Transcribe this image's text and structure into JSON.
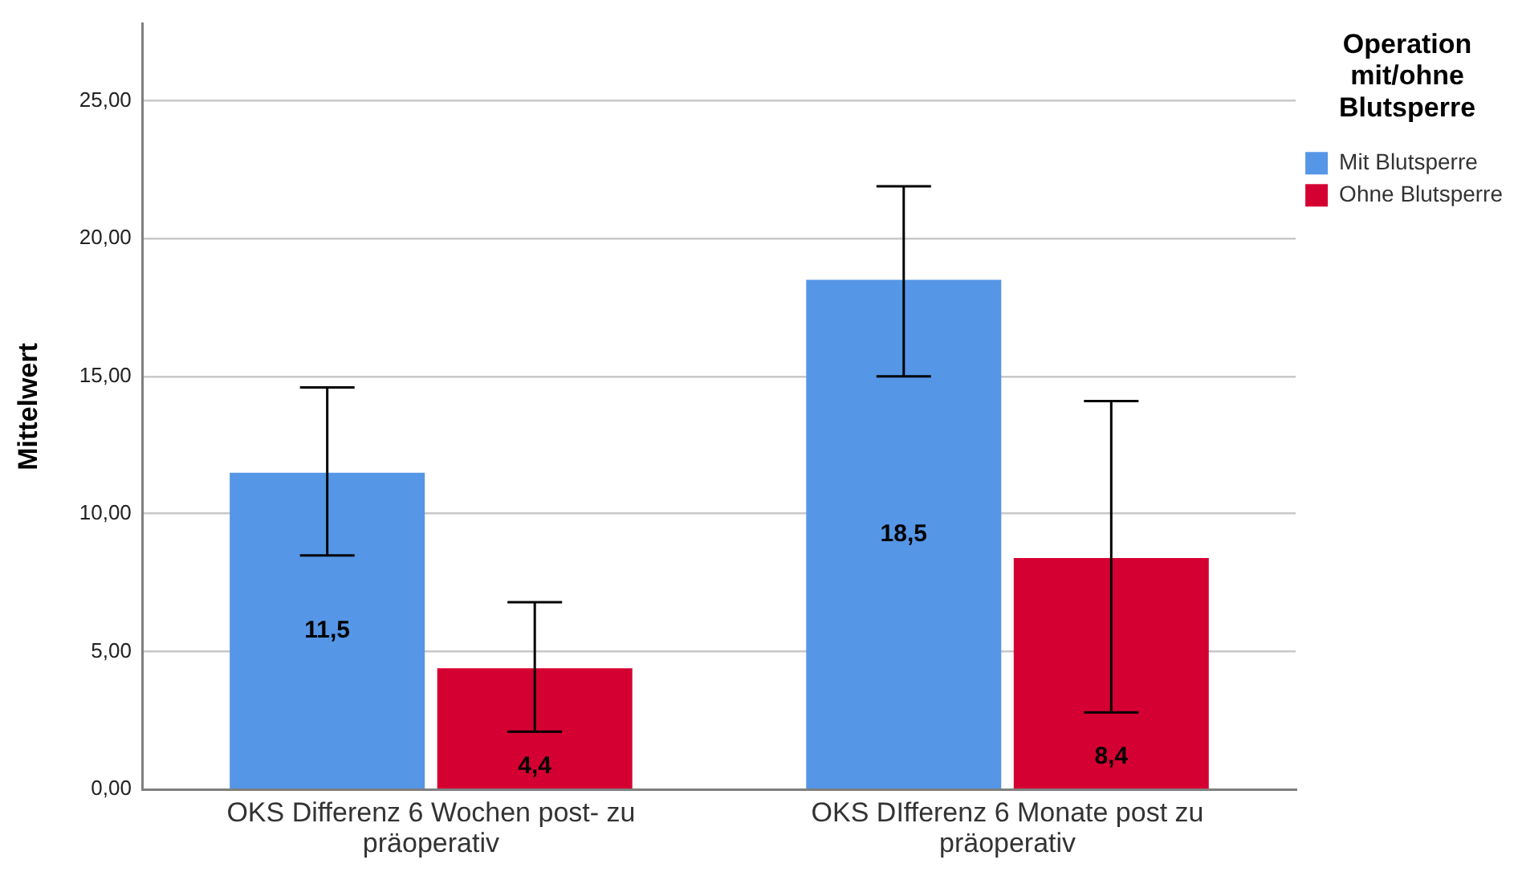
{
  "chart_data": {
    "type": "bar",
    "categories": [
      "OKS Differenz 6 Wochen post- zu präoperativ",
      "OKS DIfferenz 6 Monate post zu präoperativ"
    ],
    "ylabel": "Mittelwert",
    "legend_title": "Operation mit/ohne Blutsperre",
    "series": [
      {
        "name": "Mit Blutsperre",
        "color": "#5596e6",
        "values": [
          11.5,
          18.5
        ],
        "errors": [
          [
            8.5,
            14.6
          ],
          [
            15.0,
            21.9
          ]
        ],
        "value_labels": [
          "11,5",
          "18,5"
        ]
      },
      {
        "name": "Ohne Blutsperre",
        "color": "#d50032",
        "values": [
          4.4,
          8.4
        ],
        "errors": [
          [
            2.1,
            6.8
          ],
          [
            2.8,
            14.1
          ]
        ],
        "value_labels": [
          "4,4",
          "8,4"
        ]
      }
    ],
    "ylim": [
      0,
      27.8
    ],
    "yticks": [
      {
        "value": 0,
        "label": "0,00"
      },
      {
        "value": 5,
        "label": "5,00"
      },
      {
        "value": 10,
        "label": "10,00"
      },
      {
        "value": 15,
        "label": "15,00"
      },
      {
        "value": 20,
        "label": "20,00"
      },
      {
        "value": 25,
        "label": "25,00"
      }
    ],
    "grid": "y",
    "legend": "top right"
  }
}
